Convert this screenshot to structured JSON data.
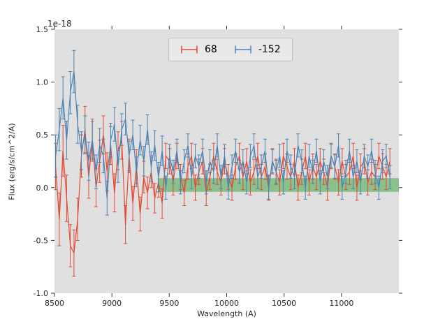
{
  "figure": {
    "background": "#ffffff"
  },
  "chart_data": {
    "type": "line",
    "subtype": "errorbar-spectrum",
    "title": "",
    "xlabel": "Wavelength (A)",
    "ylabel": "Flux (erg/s/cm^2/A)",
    "offset_text": "1e-18",
    "xlim": [
      8500,
      11500
    ],
    "ylim": [
      -1.0,
      1.5
    ],
    "grid": false,
    "plot_bg": "#e0e0e0",
    "tick_color": "#333333",
    "xtick_values": [
      8500,
      9000,
      9500,
      10000,
      10500,
      11000
    ],
    "xtick_labels": [
      "8500",
      "9000",
      "9500",
      "10000",
      "10500",
      "11000"
    ],
    "ytick_values": [
      -1.0,
      -0.5,
      0.0,
      0.5,
      1.0,
      1.5
    ],
    "ytick_labels": [
      "-1.0",
      "-0.5",
      "0.0",
      "0.5",
      "1.0",
      "1.5"
    ],
    "legend": {
      "position": "upper center",
      "labels": [
        "68",
        "-152"
      ]
    },
    "band": {
      "x0": 9400,
      "x1": 11500,
      "y0": -0.04,
      "y1": 0.09,
      "color": "#33a033",
      "opacity": 0.5
    },
    "x": [
      8510,
      8542,
      8574,
      8606,
      8638,
      8670,
      8702,
      8734,
      8766,
      8798,
      8830,
      8862,
      8894,
      8926,
      8958,
      8990,
      9022,
      9054,
      9086,
      9118,
      9150,
      9182,
      9214,
      9246,
      9278,
      9310,
      9342,
      9374,
      9406,
      9438,
      9470,
      9502,
      9534,
      9566,
      9598,
      9630,
      9662,
      9694,
      9726,
      9758,
      9790,
      9822,
      9854,
      9886,
      9918,
      9950,
      9982,
      10014,
      10046,
      10078,
      10110,
      10142,
      10174,
      10206,
      10238,
      10270,
      10302,
      10334,
      10366,
      10398,
      10430,
      10462,
      10494,
      10526,
      10558,
      10590,
      10622,
      10654,
      10686,
      10718,
      10750,
      10782,
      10814,
      10846,
      10878,
      10910,
      10942,
      10974,
      11006,
      11038,
      11070,
      11102,
      11134,
      11166,
      11198,
      11230,
      11262,
      11294,
      11326,
      11358,
      11390,
      11422
    ],
    "series": [
      {
        "name": "68",
        "color": "#e24a33",
        "values": [
          0.2,
          -0.3,
          0.35,
          -0.1,
          -0.55,
          -0.62,
          -0.3,
          0.3,
          0.55,
          0.1,
          0.45,
          0.0,
          0.25,
          0.5,
          0.15,
          0.4,
          -0.05,
          0.35,
          0.45,
          -0.35,
          0.3,
          -0.15,
          0.2,
          -0.25,
          0.1,
          -0.05,
          0.15,
          -0.1,
          0.05,
          -0.15,
          0.3,
          0.25,
          0.05,
          0.3,
          0.1,
          -0.05,
          0.2,
          0.3,
          0.0,
          0.15,
          0.25,
          -0.05,
          0.1,
          0.3,
          0.15,
          0.05,
          0.25,
          0.1,
          0.0,
          0.2,
          0.3,
          0.1,
          0.25,
          0.05,
          0.15,
          0.3,
          0.1,
          0.2,
          0.0,
          0.25,
          0.15,
          0.05,
          0.3,
          0.2,
          0.1,
          0.25,
          0.0,
          0.15,
          0.3,
          0.05,
          0.2,
          0.1,
          0.25,
          0.15,
          0.0,
          0.3,
          0.2,
          0.05,
          0.25,
          0.1,
          0.15,
          0.3,
          0.0,
          0.2,
          0.25,
          0.05,
          0.15,
          0.1,
          0.3,
          0.2,
          0.1,
          0.25
        ],
        "yerr": [
          0.22,
          0.25,
          0.24,
          0.22,
          0.2,
          0.22,
          0.2,
          0.2,
          0.22,
          0.2,
          0.2,
          0.18,
          0.2,
          0.18,
          0.18,
          0.18,
          0.18,
          0.18,
          0.18,
          0.18,
          0.16,
          0.16,
          0.16,
          0.16,
          0.15,
          0.15,
          0.15,
          0.14,
          0.14,
          0.14,
          0.12,
          0.12,
          0.12,
          0.12,
          0.12,
          0.12,
          0.12,
          0.12,
          0.12,
          0.12,
          0.12,
          0.12,
          0.12,
          0.12,
          0.12,
          0.12,
          0.12,
          0.12,
          0.12,
          0.12,
          0.12,
          0.12,
          0.12,
          0.12,
          0.12,
          0.12,
          0.12,
          0.12,
          0.12,
          0.12,
          0.12,
          0.12,
          0.12,
          0.12,
          0.12,
          0.12,
          0.12,
          0.12,
          0.12,
          0.12,
          0.12,
          0.12,
          0.12,
          0.12,
          0.12,
          0.12,
          0.12,
          0.12,
          0.12,
          0.12,
          0.12,
          0.12,
          0.12,
          0.12,
          0.12,
          0.12,
          0.12,
          0.12,
          0.12,
          0.12,
          0.12,
          0.12
        ]
      },
      {
        "name": "-152",
        "color": "#4a82b4",
        "values": [
          0.3,
          0.55,
          0.85,
          0.45,
          0.9,
          1.1,
          0.6,
          0.35,
          0.5,
          0.25,
          0.45,
          0.15,
          0.4,
          0.3,
          -0.1,
          0.45,
          0.6,
          0.2,
          0.55,
          0.65,
          0.3,
          0.5,
          0.15,
          0.45,
          0.25,
          0.55,
          0.2,
          0.4,
          0.1,
          0.35,
          0.0,
          0.3,
          0.15,
          0.35,
          0.05,
          0.25,
          0.4,
          0.1,
          0.3,
          0.2,
          0.35,
          0.05,
          0.25,
          0.15,
          0.4,
          0.1,
          0.3,
          0.0,
          0.2,
          0.35,
          0.15,
          0.25,
          0.05,
          0.3,
          0.4,
          0.1,
          0.2,
          0.35,
          0.0,
          0.25,
          0.15,
          0.3,
          0.05,
          0.35,
          0.2,
          0.1,
          0.4,
          0.25,
          0.0,
          0.3,
          0.15,
          0.35,
          0.05,
          0.25,
          0.1,
          0.3,
          0.2,
          0.4,
          0.0,
          0.15,
          0.35,
          0.1,
          0.25,
          0.05,
          0.3,
          0.2,
          0.35,
          0.15,
          0.0,
          0.25,
          0.3,
          0.1
        ],
        "yerr": [
          0.2,
          0.2,
          0.2,
          0.18,
          0.2,
          0.2,
          0.18,
          0.18,
          0.18,
          0.18,
          0.18,
          0.16,
          0.16,
          0.16,
          0.16,
          0.16,
          0.16,
          0.15,
          0.15,
          0.15,
          0.14,
          0.14,
          0.14,
          0.14,
          0.14,
          0.14,
          0.14,
          0.14,
          0.14,
          0.14,
          0.11,
          0.11,
          0.11,
          0.11,
          0.11,
          0.11,
          0.11,
          0.11,
          0.11,
          0.11,
          0.11,
          0.11,
          0.11,
          0.11,
          0.11,
          0.11,
          0.11,
          0.11,
          0.11,
          0.11,
          0.11,
          0.11,
          0.11,
          0.11,
          0.11,
          0.11,
          0.11,
          0.11,
          0.11,
          0.11,
          0.11,
          0.11,
          0.11,
          0.11,
          0.11,
          0.11,
          0.11,
          0.11,
          0.11,
          0.11,
          0.11,
          0.11,
          0.11,
          0.11,
          0.11,
          0.11,
          0.11,
          0.11,
          0.11,
          0.11,
          0.11,
          0.11,
          0.11,
          0.11,
          0.11,
          0.11,
          0.11,
          0.11,
          0.11,
          0.11,
          0.11,
          0.11
        ]
      }
    ]
  }
}
